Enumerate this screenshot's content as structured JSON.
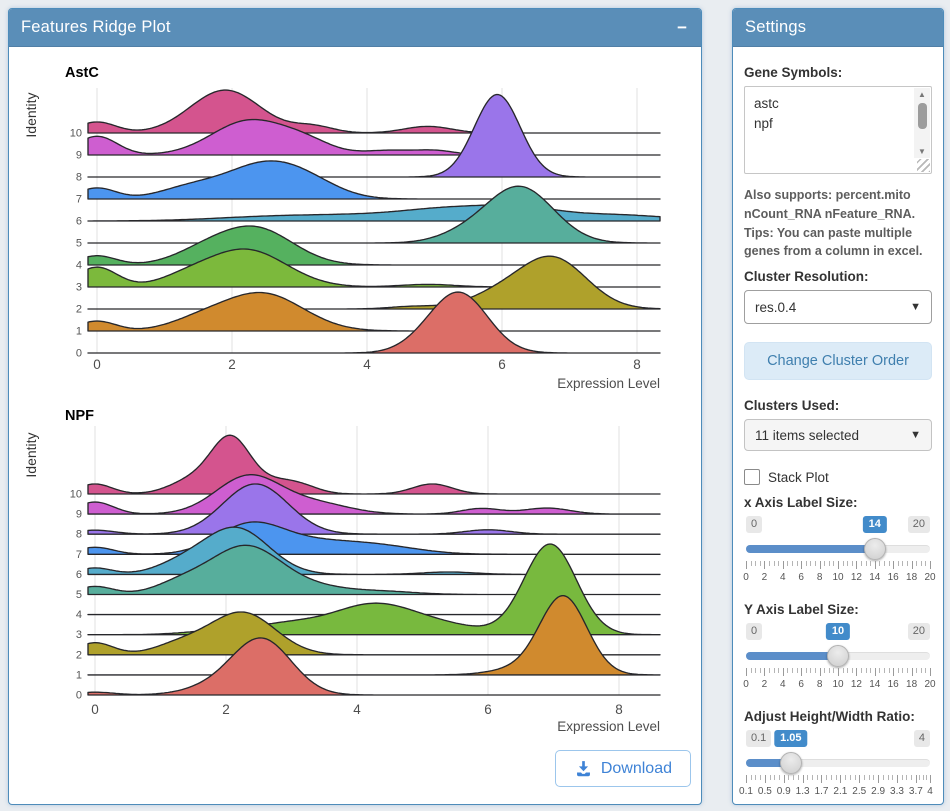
{
  "left_panel": {
    "title": "Features Ridge Plot",
    "collapse_icon": "−",
    "download_label": "Download"
  },
  "settings": {
    "title": "Settings",
    "gene_symbols_label": "Gene Symbols:",
    "gene_symbols_value": "astc\nnpf",
    "help_text": "Also supports: percent.mito nCount_RNA nFeature_RNA. Tips: You can paste multiple genes from a column in excel.",
    "cluster_resolution_label": "Cluster Resolution:",
    "cluster_resolution_value": "res.0.4",
    "change_cluster_order_label": "Change Cluster Order",
    "clusters_used_label": "Clusters Used:",
    "clusters_used_value": "11 items selected",
    "stack_plot_label": "Stack Plot",
    "sliders": [
      {
        "label": "x Axis Label Size:",
        "min": 0,
        "max": 20,
        "value": 14,
        "grid": [
          0,
          2,
          4,
          6,
          8,
          10,
          12,
          14,
          16,
          18,
          20
        ]
      },
      {
        "label": "Y Axis Label Size:",
        "min": 0,
        "max": 20,
        "value": 10,
        "grid": [
          0,
          2,
          4,
          6,
          8,
          10,
          12,
          14,
          16,
          18,
          20
        ]
      },
      {
        "label": "Adjust Height/Width Ratio:",
        "min": 0.1,
        "max": 4,
        "value": 1.05,
        "grid": [
          0.1,
          0.5,
          0.9,
          1.3,
          1.7,
          2.1,
          2.5,
          2.9,
          3.3,
          3.7,
          4
        ]
      }
    ]
  },
  "chart_data": [
    {
      "type": "ridge",
      "title": "AstC",
      "xlabel": "Expression Level",
      "ylabel": "Identity",
      "xticks": [
        0,
        2,
        4,
        6,
        8
      ],
      "xlim": [
        -0.15,
        8.35
      ],
      "identities": [
        10,
        9,
        8,
        7,
        6,
        5,
        4,
        3,
        2,
        1,
        0
      ],
      "bump_format": "[center_x, peak_height_in_row_units, sigma_x]",
      "rows": [
        {
          "identity": 10,
          "color": "#D4548E",
          "bumps": [
            [
              0,
              0.5,
              0.28
            ],
            [
              1.9,
              1.95,
              0.52
            ],
            [
              3.2,
              0.3,
              0.3
            ],
            [
              4.9,
              0.3,
              0.35
            ]
          ]
        },
        {
          "identity": 9,
          "color": "#CE5ED0",
          "bumps": [
            [
              0,
              0.85,
              0.3
            ],
            [
              2.25,
              1.55,
              0.55
            ],
            [
              3.1,
              0.5,
              0.4
            ],
            [
              4.3,
              0.2,
              0.35
            ],
            [
              5.0,
              0.2,
              0.3
            ]
          ]
        },
        {
          "identity": 8,
          "color": "#9A75EA",
          "bumps": [
            [
              5.93,
              3.75,
              0.34
            ]
          ]
        },
        {
          "identity": 7,
          "color": "#4C95EF",
          "bumps": [
            [
              0,
              0.5,
              0.28
            ],
            [
              1.35,
              0.45,
              0.45
            ],
            [
              2.5,
              1.6,
              0.6
            ],
            [
              3.2,
              0.35,
              0.45
            ]
          ]
        },
        {
          "identity": 6,
          "color": "#55ACCB",
          "bumps": [
            [
              2.6,
              0.18,
              0.9
            ],
            [
              4.3,
              0.25,
              1.0
            ],
            [
              5.4,
              0.45,
              0.7
            ],
            [
              6.3,
              0.35,
              0.5
            ],
            [
              7.5,
              0.3,
              0.9
            ]
          ]
        },
        {
          "identity": 5,
          "color": "#57AE9C",
          "bumps": [
            [
              5.4,
              0.3,
              0.4
            ],
            [
              6.26,
              2.55,
              0.5
            ]
          ]
        },
        {
          "identity": 4,
          "color": "#55B15F",
          "bumps": [
            [
              0,
              0.42,
              0.28
            ],
            [
              1.55,
              0.5,
              0.45
            ],
            [
              2.35,
              1.65,
              0.55
            ]
          ]
        },
        {
          "identity": 3,
          "color": "#7CB93C",
          "bumps": [
            [
              0,
              0.9,
              0.3
            ],
            [
              1.3,
              0.3,
              0.4
            ],
            [
              2.2,
              1.7,
              0.6
            ],
            [
              4.9,
              0.12,
              0.4
            ]
          ]
        },
        {
          "identity": 2,
          "color": "#AFA12B",
          "bumps": [
            [
              4.7,
              0.12,
              0.35
            ],
            [
              5.9,
              0.55,
              0.45
            ],
            [
              6.75,
              2.3,
              0.5
            ]
          ]
        },
        {
          "identity": 1,
          "color": "#D08A2E",
          "bumps": [
            [
              0,
              0.45,
              0.28
            ],
            [
              1.5,
              0.4,
              0.45
            ],
            [
              2.45,
              1.7,
              0.6
            ]
          ]
        },
        {
          "identity": 0,
          "color": "#DC6E67",
          "bumps": [
            [
              4.8,
              0.25,
              0.35
            ],
            [
              5.37,
              2.7,
              0.42
            ]
          ]
        }
      ]
    },
    {
      "type": "ridge",
      "title": "NPF",
      "xlabel": "Expression Level",
      "ylabel": "Identity",
      "xticks": [
        0,
        2,
        4,
        6,
        8
      ],
      "xlim": [
        -0.15,
        8.6
      ],
      "identities": [
        10,
        9,
        8,
        7,
        6,
        5,
        4,
        3,
        2,
        1,
        0
      ],
      "bump_format": "[center_x, peak_height_in_row_units, sigma_x]",
      "rows": [
        {
          "identity": 10,
          "color": "#D4548E",
          "bumps": [
            [
              0,
              0.5,
              0.26
            ],
            [
              1.5,
              0.7,
              0.35
            ],
            [
              2.08,
              2.7,
              0.3
            ],
            [
              2.75,
              0.5,
              0.3
            ],
            [
              3.15,
              0.35,
              0.28
            ],
            [
              5.15,
              0.5,
              0.3
            ]
          ]
        },
        {
          "identity": 9,
          "color": "#CE5ED0",
          "bumps": [
            [
              0,
              0.6,
              0.28
            ],
            [
              2.35,
              1.9,
              0.5
            ],
            [
              3.4,
              0.5,
              0.5
            ],
            [
              5.9,
              0.28,
              0.3
            ],
            [
              6.9,
              0.3,
              0.35
            ]
          ]
        },
        {
          "identity": 8,
          "color": "#9A75EA",
          "bumps": [
            [
              0,
              0.2,
              0.3
            ],
            [
              2.45,
              2.5,
              0.5
            ],
            [
              6.0,
              0.22,
              0.35
            ]
          ]
        },
        {
          "identity": 7,
          "color": "#4C95EF",
          "bumps": [
            [
              0,
              0.35,
              0.28
            ],
            [
              2.35,
              1.35,
              0.5
            ],
            [
              3.3,
              0.6,
              0.7
            ],
            [
              4.4,
              0.33,
              0.6
            ]
          ]
        },
        {
          "identity": 6,
          "color": "#55ACCB",
          "bumps": [
            [
              0,
              0.32,
              0.26
            ],
            [
              1.3,
              0.45,
              0.4
            ],
            [
              2.15,
              2.3,
              0.5
            ],
            [
              5.4,
              0.12,
              0.4
            ]
          ]
        },
        {
          "identity": 5,
          "color": "#57AE9C",
          "bumps": [
            [
              0,
              0.4,
              0.28
            ],
            [
              1.3,
              0.5,
              0.4
            ],
            [
              2.3,
              2.4,
              0.55
            ],
            [
              3.4,
              0.3,
              0.5
            ],
            [
              4.4,
              0.15,
              0.5
            ]
          ]
        },
        {
          "identity": 4,
          "color": "#55B15F",
          "bumps": []
        },
        {
          "identity": 3,
          "color": "#78B93E",
          "bumps": [
            [
              1.9,
              0.2,
              0.5
            ],
            [
              2.9,
              0.45,
              0.5
            ],
            [
              4.25,
              1.5,
              0.65
            ],
            [
              5.4,
              0.35,
              0.6
            ],
            [
              6.95,
              4.5,
              0.4
            ]
          ]
        },
        {
          "identity": 2,
          "color": "#AFA12B",
          "bumps": [
            [
              0,
              0.6,
              0.28
            ],
            [
              1.3,
              0.5,
              0.4
            ],
            [
              2.25,
              2.1,
              0.5
            ]
          ]
        },
        {
          "identity": 1,
          "color": "#D08A2E",
          "bumps": [
            [
              6.4,
              0.25,
              0.4
            ],
            [
              7.15,
              3.9,
              0.36
            ]
          ]
        },
        {
          "identity": 0,
          "color": "#DC6E67",
          "bumps": [
            [
              0,
              0.14,
              0.3
            ],
            [
              1.8,
              0.35,
              0.45
            ],
            [
              2.55,
              2.75,
              0.45
            ]
          ]
        }
      ]
    }
  ]
}
